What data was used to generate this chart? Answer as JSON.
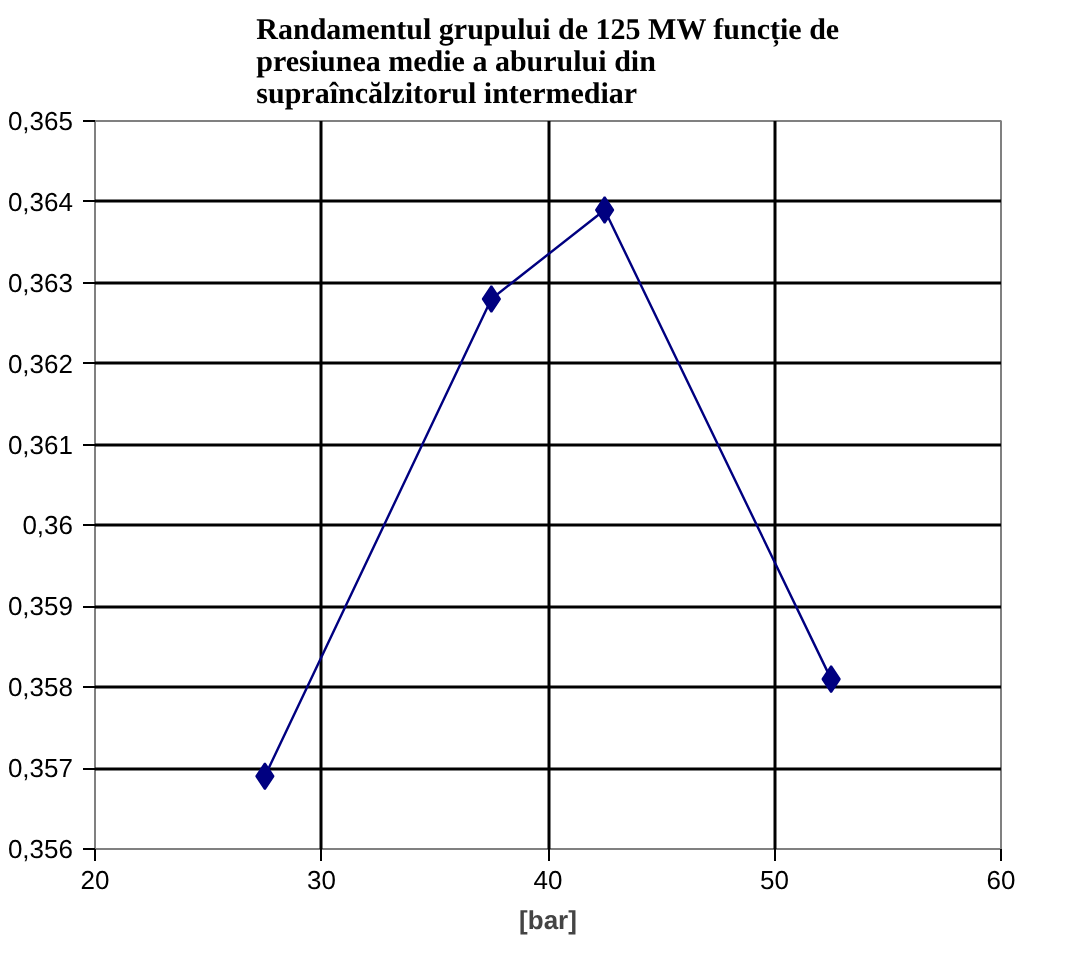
{
  "chart_data": {
    "type": "line",
    "title": "Randamentul grupului de 125 MW funcție de presiunea medie a aburului din supraîncălzitorul intermediar",
    "xlabel": "[bar]",
    "x": [
      27.5,
      37.5,
      42.5,
      52.5
    ],
    "series": [
      {
        "color": "#000080",
        "values": [
          0.3569,
          0.3628,
          0.3639,
          0.3581
        ]
      }
    ],
    "xlim": [
      20,
      60
    ],
    "xticks": [
      20,
      30,
      40,
      50,
      60
    ],
    "ylim": [
      0.356,
      0.365
    ],
    "yticks": [
      {
        "value": 0.356,
        "label": "0,356"
      },
      {
        "value": 0.357,
        "label": "0,357"
      },
      {
        "value": 0.358,
        "label": "0,358"
      },
      {
        "value": 0.359,
        "label": "0,359"
      },
      {
        "value": 0.36,
        "label": "0,36"
      },
      {
        "value": 0.361,
        "label": "0,361"
      },
      {
        "value": 0.362,
        "label": "0,362"
      },
      {
        "value": 0.363,
        "label": "0,363"
      },
      {
        "value": 0.364,
        "label": "0,364"
      },
      {
        "value": 0.365,
        "label": "0,365"
      }
    ],
    "grid": true,
    "marker": "diamond",
    "line_style": "solid"
  }
}
